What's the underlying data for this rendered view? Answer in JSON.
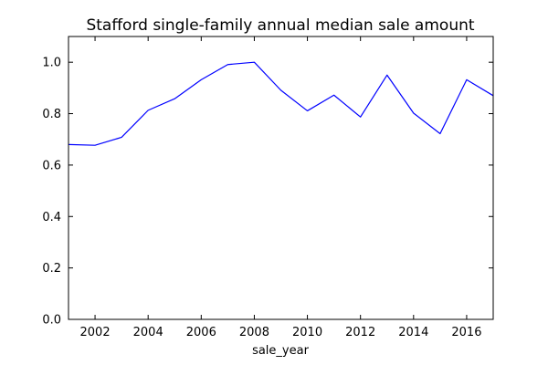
{
  "chart_data": {
    "type": "line",
    "title": "Stafford single-family annual median sale amount",
    "xlabel": "sale_year",
    "ylabel": "",
    "xlim": [
      2001,
      2017
    ],
    "ylim": [
      0.0,
      1.1
    ],
    "xticks": [
      2002,
      2004,
      2006,
      2008,
      2010,
      2012,
      2014,
      2016
    ],
    "yticks": [
      0.0,
      0.2,
      0.4,
      0.6,
      0.8,
      1.0
    ],
    "x_tick_labels": [
      "2002",
      "2004",
      "2006",
      "2008",
      "2010",
      "2012",
      "2014",
      "2016"
    ],
    "y_tick_labels": [
      "0.0",
      "0.2",
      "0.4",
      "0.6",
      "0.8",
      "1.0"
    ],
    "grid": false,
    "legend": "none",
    "series": [
      {
        "color": "#0000ff",
        "x": [
          2001,
          2002,
          2003,
          2004,
          2005,
          2006,
          2007,
          2008,
          2009,
          2010,
          2011,
          2012,
          2013,
          2014,
          2015,
          2016,
          2017
        ],
        "y": [
          0.68,
          0.677,
          0.708,
          0.813,
          0.858,
          0.932,
          0.991,
          1.0,
          0.891,
          0.811,
          0.872,
          0.787,
          0.95,
          0.802,
          0.722,
          0.932,
          0.87
        ]
      }
    ]
  }
}
